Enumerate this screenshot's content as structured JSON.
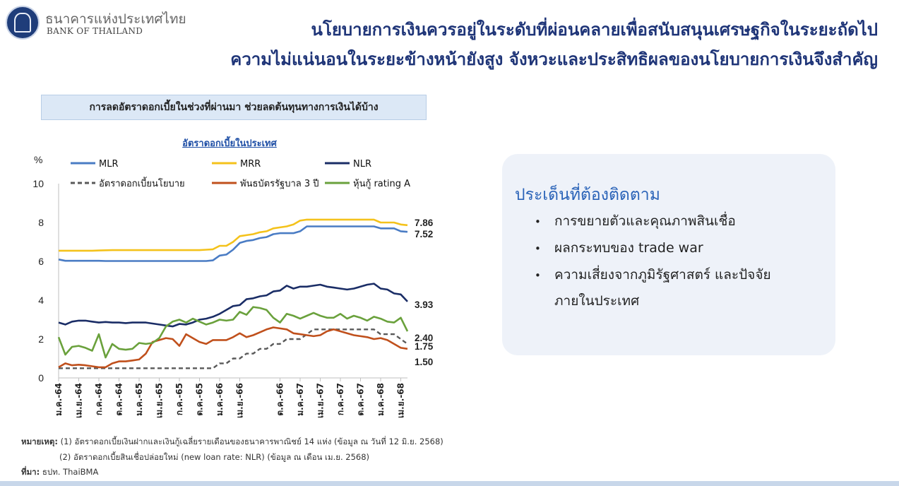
{
  "header": {
    "org_thai": "ธนาคารแห่งประเทศไทย",
    "org_english": "BANK OF THAILAND",
    "title_line1": "นโยบายการเงินควรอยู่ในระดับที่ผ่อนคลายเพื่อสนับสนุนเศรษฐกิจในระยะถัดไป",
    "title_line2": "ความไม่แน่นอนในระยะข้างหน้ายังสูง จังหวะและประสิทธิผลของนโยบายการเงินจึงสำคัญ"
  },
  "subheading": "การลดอัตราดอกเบี้ยในช่วงที่ผ่านมา ช่วยลดต้นทุนทางการเงินได้บ้าง",
  "chart_data": {
    "type": "line",
    "title": "อัตราดอกเบี้ยในประเทศ",
    "ylabel": "%",
    "ylim": [
      0,
      10
    ],
    "yticks": [
      "0",
      "2",
      "4",
      "6",
      "8",
      "10"
    ],
    "grid": false,
    "legend_position": "top",
    "x_ticks": [
      "ม.ค.-64",
      "เม.ย.-64",
      "ก.ค.-64",
      "ต.ค.-64",
      "ม.ค.-65",
      "เม.ย.-65",
      "ก.ค.-65",
      "ต.ค.-65",
      "ม.ค.-66",
      "เม.ย.-66",
      "ต.ค.-66",
      "ม.ค.-67",
      "เม.ย.-67",
      "ก.ค.-67",
      "ต.ค.-67",
      "ม.ค.-68",
      "เม.ย.-68"
    ],
    "x_tick_index": [
      0,
      3,
      6,
      9,
      12,
      15,
      18,
      21,
      24,
      27,
      33,
      36,
      39,
      42,
      45,
      48,
      51
    ],
    "n_points": 53,
    "series": [
      {
        "name": "MLR",
        "color": "#4a7cc4",
        "dash": false,
        "end_label": "7.52",
        "values": [
          6.1,
          6.03,
          6.03,
          6.03,
          6.03,
          6.03,
          6.03,
          6.02,
          6.02,
          6.02,
          6.02,
          6.02,
          6.02,
          6.02,
          6.02,
          6.02,
          6.02,
          6.02,
          6.02,
          6.02,
          6.02,
          6.02,
          6.02,
          6.05,
          6.3,
          6.35,
          6.6,
          6.95,
          7.05,
          7.1,
          7.2,
          7.25,
          7.4,
          7.45,
          7.45,
          7.45,
          7.55,
          7.8,
          7.8,
          7.8,
          7.8,
          7.8,
          7.8,
          7.8,
          7.8,
          7.8,
          7.8,
          7.8,
          7.7,
          7.7,
          7.7,
          7.55,
          7.52
        ]
      },
      {
        "name": "MRR",
        "color": "#f4c21b",
        "dash": false,
        "end_label": "7.86",
        "values": [
          6.55,
          6.55,
          6.55,
          6.55,
          6.55,
          6.55,
          6.56,
          6.57,
          6.58,
          6.58,
          6.58,
          6.58,
          6.58,
          6.58,
          6.58,
          6.58,
          6.58,
          6.58,
          6.58,
          6.58,
          6.58,
          6.58,
          6.6,
          6.62,
          6.8,
          6.8,
          7.0,
          7.3,
          7.35,
          7.4,
          7.5,
          7.55,
          7.7,
          7.75,
          7.8,
          7.9,
          8.1,
          8.15,
          8.15,
          8.15,
          8.15,
          8.15,
          8.15,
          8.15,
          8.15,
          8.15,
          8.15,
          8.15,
          8.0,
          8.0,
          8.0,
          7.9,
          7.86
        ]
      },
      {
        "name": "NLR",
        "color": "#1a2d66",
        "dash": false,
        "end_label": "3.93",
        "values": [
          2.85,
          2.75,
          2.9,
          2.95,
          2.95,
          2.9,
          2.85,
          2.88,
          2.85,
          2.85,
          2.82,
          2.85,
          2.85,
          2.85,
          2.8,
          2.75,
          2.7,
          2.65,
          2.78,
          2.75,
          2.85,
          3.0,
          3.05,
          3.15,
          3.3,
          3.5,
          3.7,
          3.75,
          4.05,
          4.1,
          4.2,
          4.25,
          4.45,
          4.5,
          4.75,
          4.6,
          4.7,
          4.7,
          4.75,
          4.8,
          4.7,
          4.65,
          4.6,
          4.55,
          4.6,
          4.7,
          4.8,
          4.85,
          4.6,
          4.55,
          4.35,
          4.3,
          3.93
        ]
      },
      {
        "name": "อัตราดอกเบี้ยนโยบาย",
        "color": "#595959",
        "dash": true,
        "end_label": "1.75",
        "values": [
          0.5,
          0.5,
          0.5,
          0.5,
          0.5,
          0.5,
          0.5,
          0.5,
          0.5,
          0.5,
          0.5,
          0.5,
          0.5,
          0.5,
          0.5,
          0.5,
          0.5,
          0.5,
          0.5,
          0.5,
          0.5,
          0.5,
          0.5,
          0.5,
          0.75,
          0.75,
          1.0,
          1.0,
          1.25,
          1.25,
          1.5,
          1.5,
          1.75,
          1.75,
          2.0,
          2.0,
          2.0,
          2.25,
          2.5,
          2.5,
          2.5,
          2.5,
          2.5,
          2.5,
          2.5,
          2.5,
          2.5,
          2.5,
          2.25,
          2.25,
          2.25,
          2.0,
          1.75
        ]
      },
      {
        "name": "พันธบัตรรัฐบาล 3 ปี",
        "color": "#c0501c",
        "dash": false,
        "end_label": "1.50",
        "values": [
          0.55,
          0.75,
          0.65,
          0.68,
          0.65,
          0.6,
          0.55,
          0.55,
          0.75,
          0.85,
          0.85,
          0.9,
          0.95,
          1.25,
          1.85,
          1.95,
          2.05,
          2.0,
          1.65,
          2.25,
          2.05,
          1.85,
          1.75,
          1.95,
          1.95,
          1.95,
          2.1,
          2.3,
          2.1,
          2.2,
          2.35,
          2.5,
          2.6,
          2.55,
          2.5,
          2.3,
          2.25,
          2.2,
          2.15,
          2.2,
          2.4,
          2.5,
          2.4,
          2.3,
          2.2,
          2.15,
          2.1,
          2.0,
          2.05,
          1.95,
          1.75,
          1.55,
          1.5
        ]
      },
      {
        "name": "หุ้นกู้ rating A",
        "color": "#6aa13c",
        "dash": false,
        "end_label": "2.40",
        "values": [
          2.1,
          1.2,
          1.6,
          1.65,
          1.55,
          1.4,
          2.25,
          1.05,
          1.75,
          1.5,
          1.45,
          1.5,
          1.8,
          1.75,
          1.8,
          2.05,
          2.65,
          2.9,
          3.0,
          2.85,
          3.05,
          2.9,
          2.75,
          2.85,
          3.0,
          2.95,
          3.0,
          3.4,
          3.25,
          3.65,
          3.6,
          3.5,
          3.1,
          2.85,
          3.3,
          3.2,
          3.05,
          3.2,
          3.35,
          3.2,
          3.1,
          3.1,
          3.3,
          3.05,
          3.2,
          3.1,
          2.95,
          3.15,
          3.05,
          2.9,
          2.85,
          3.1,
          2.4
        ]
      }
    ]
  },
  "panel": {
    "title": "ประเด็นที่ต้องติดตาม",
    "bullet_glyph": "•",
    "items": [
      "การขยายตัวและคุณภาพสินเชื่อ",
      "ผลกระทบของ trade war",
      "ความเสี่ยงจากภูมิรัฐศาสตร์ และปัจจัย"
    ],
    "item3_cont": "ภายในประเทศ"
  },
  "notes": {
    "label": "หมายเหตุ:",
    "note1": "(1) อัตราดอกเบี้ยเงินฝากและเงินกู้เฉลี่ยรายเดือนของธนาคารพาณิชย์ 14 แห่ง (ข้อมูล ณ วันที่ 12 มิ.ย. 2568)",
    "note2": "(2) อัตราดอกเบี้ยสินเชื่อปล่อยใหม่ (new loan rate: NLR) (ข้อมูล ณ เดือน เม.ย. 2568)",
    "source_label": "ที่มา:",
    "source": "ธปท. ThaiBMA"
  }
}
